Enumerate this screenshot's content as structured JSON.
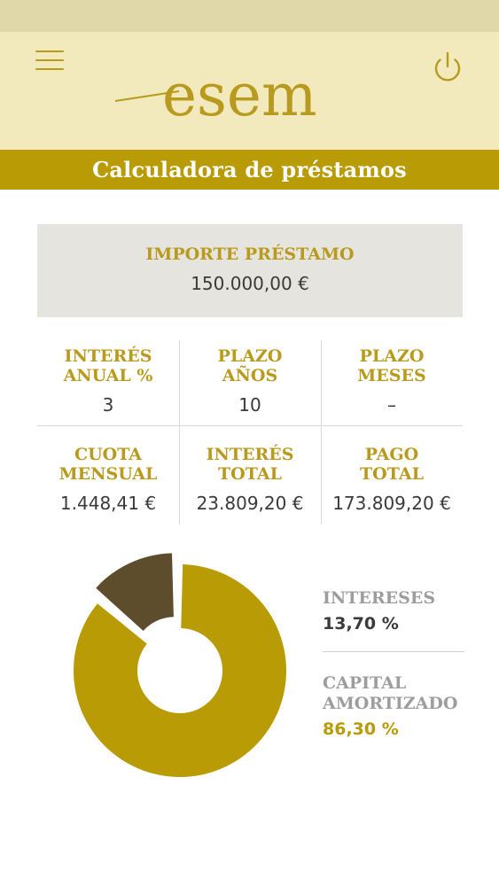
{
  "header": {
    "logo_text": "esem",
    "menu_icon": "hamburger-menu-icon",
    "power_icon": "power-icon"
  },
  "title": "Calculadora de préstamos",
  "loan": {
    "label": "IMPORTE PRÉSTAMO",
    "value": "150.000,00 €"
  },
  "params": [
    {
      "label": "INTERÉS\nANUAL %",
      "value": "3"
    },
    {
      "label": "PLAZO\nAÑOS",
      "value": "10"
    },
    {
      "label": "PLAZO\nMESES",
      "value": "–"
    }
  ],
  "results": [
    {
      "label": "CUOTA\nMENSUAL",
      "value": "1.448,41 €"
    },
    {
      "label": "INTERÉS\nTOTAL",
      "value": "23.809,20 €"
    },
    {
      "label": "PAGO\nTOTAL",
      "value": "173.809,20 €"
    }
  ],
  "chart_data": {
    "type": "pie",
    "donut": true,
    "title": "",
    "slices": [
      {
        "name": "INTERESES",
        "value": 13.7,
        "color": "#5e4d2c",
        "exploded": true
      },
      {
        "name": "CAPITAL AMORTIZADO",
        "value": 86.3,
        "color": "#b89b05",
        "exploded": false
      }
    ],
    "legend": [
      {
        "label": "INTERESES",
        "value_text": "13,70 %",
        "value_color": "#3a3a3a"
      },
      {
        "label": "CAPITAL\nAMORTIZADO",
        "value_text": "86,30 %",
        "value_color": "#b89b05"
      }
    ],
    "legend_position": "right"
  },
  "colors": {
    "gold": "#b89b05",
    "header_bg": "#f2e9bd",
    "label_gold": "#b99a1c",
    "dark_brown": "#5e4d2c"
  }
}
